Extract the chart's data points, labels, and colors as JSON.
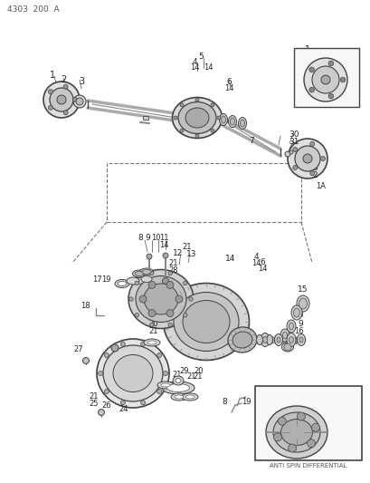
{
  "title": "4303  200  A",
  "background_color": "#ffffff",
  "line_color": "#444444",
  "text_color": "#222222",
  "fig_width": 4.1,
  "fig_height": 5.33,
  "dpi": 100,
  "anti_spin_label": "ANTI SPIN DIFFERENTIAL"
}
